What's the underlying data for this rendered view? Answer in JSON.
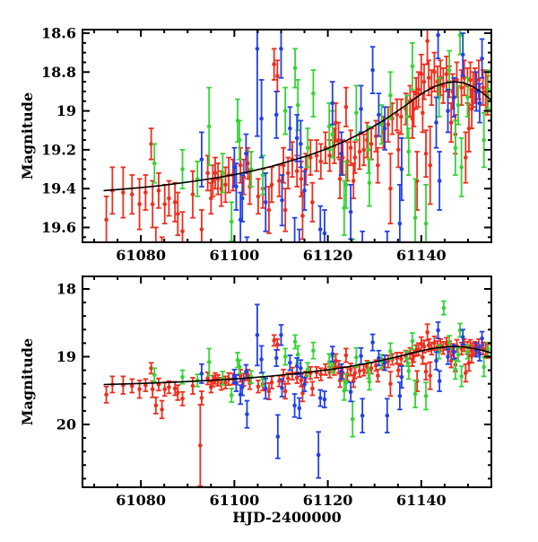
{
  "figure": {
    "background": "#ffffff",
    "frame_color": "#000000"
  },
  "chart_data": {
    "type": "scatter",
    "title": "",
    "xlabel": "HJD-2400000",
    "ylabel": "Magnitude",
    "grid": false,
    "legend": false,
    "xlim": [
      61067.5,
      61155.0
    ],
    "x_major_ticks": [
      61080,
      61100,
      61120,
      61140
    ],
    "x_major_tick_labels": [
      "61080",
      "61100",
      "61120",
      "61140"
    ],
    "x_minor_step": 5,
    "y_axis_direction": "magnitude-inverted",
    "panels": [
      {
        "name": "zoomed-magnitude-panel",
        "ylim_top": 18.5815,
        "ylim_bottom": 19.6763,
        "y_major_ticks": [
          18.6,
          18.8,
          19.0,
          19.2,
          19.4,
          19.6
        ],
        "y_major_tick_labels": [
          "18.6",
          "18.8",
          "19",
          "19.2",
          "19.4",
          "19.6"
        ],
        "y_minor_step": 0.05,
        "show_x_tick_labels": true,
        "show_xlabel": false
      },
      {
        "name": "full-range-magnitude-panel",
        "ylim_top": 17.8146,
        "ylim_bottom": 20.9272,
        "y_major_ticks": [
          18,
          19,
          20
        ],
        "y_major_tick_labels": [
          "18",
          "19",
          "20"
        ],
        "y_minor_step": 0.2,
        "show_x_tick_labels": true,
        "show_xlabel": true
      }
    ],
    "series": [
      {
        "name": "red-photometry",
        "color": "#ee2e1c",
        "points": [
          [
            61072.6,
            19.56,
            0.12
          ],
          [
            61073.9,
            19.41,
            0.12
          ],
          [
            61076.2,
            19.42,
            0.13
          ],
          [
            61078.1,
            19.43,
            0.1
          ],
          [
            61079.7,
            19.48,
            0.13
          ],
          [
            61081.0,
            19.42,
            0.09
          ],
          [
            61082.2,
            19.17,
            0.08
          ],
          [
            61082.5,
            19.48,
            0.12
          ],
          [
            61083.2,
            19.72,
            0.12
          ],
          [
            61083.8,
            19.41,
            0.09
          ],
          [
            61084.5,
            19.78,
            0.13
          ],
          [
            61085.1,
            19.48,
            0.1
          ],
          [
            61086.0,
            19.45,
            0.09
          ],
          [
            61087.3,
            19.47,
            0.1
          ],
          [
            61087.9,
            19.53,
            0.11
          ],
          [
            61088.9,
            19.62,
            0.1
          ],
          [
            61091.1,
            19.43,
            0.12
          ],
          [
            61092.7,
            20.31,
            0.6
          ],
          [
            61093.0,
            19.61,
            0.1
          ],
          [
            61094.3,
            19.32,
            0.09
          ],
          [
            61095.0,
            19.45,
            0.08
          ],
          [
            61095.4,
            19.36,
            0.08
          ],
          [
            61095.9,
            19.32,
            0.08
          ],
          [
            61096.5,
            19.35,
            0.08
          ],
          [
            61097.2,
            19.4,
            0.09
          ],
          [
            61098.1,
            19.38,
            0.09
          ],
          [
            61098.8,
            19.33,
            0.09
          ],
          [
            61099.7,
            19.33,
            0.08
          ],
          [
            61101.3,
            19.28,
            0.09
          ],
          [
            61102.0,
            19.34,
            0.09
          ],
          [
            61102.9,
            19.27,
            0.08
          ],
          [
            61103.3,
            19.39,
            0.09
          ],
          [
            61105.1,
            19.44,
            0.09
          ],
          [
            61106.1,
            19.4,
            0.1
          ],
          [
            61107.4,
            19.51,
            0.12
          ],
          [
            61108.0,
            19.38,
            0.09
          ],
          [
            61108.5,
            18.76,
            0.08
          ],
          [
            61109.2,
            18.82,
            0.08
          ],
          [
            61109.6,
            19.36,
            0.08
          ],
          [
            61110.5,
            19.28,
            0.09
          ],
          [
            61110.9,
            19.51,
            0.11
          ],
          [
            61111.5,
            19.32,
            0.08
          ],
          [
            61112.4,
            19.25,
            0.09
          ],
          [
            61113.4,
            19.31,
            0.08
          ],
          [
            61114.3,
            19.35,
            0.09
          ],
          [
            61114.6,
            19.54,
            0.12
          ],
          [
            61115.3,
            19.3,
            0.08
          ],
          [
            61116.3,
            19.24,
            0.09
          ],
          [
            61116.7,
            19.47,
            0.1
          ],
          [
            61117.6,
            19.23,
            0.08
          ],
          [
            61118.5,
            19.26,
            0.09
          ],
          [
            61119.5,
            19.19,
            0.08
          ],
          [
            61120.4,
            19.23,
            0.08
          ],
          [
            61121.4,
            19.18,
            0.09
          ],
          [
            61121.7,
            19.06,
            0.1
          ],
          [
            61122.3,
            19.15,
            0.09
          ],
          [
            61122.6,
            19.35,
            0.1
          ],
          [
            61123.2,
            19.24,
            0.09
          ],
          [
            61123.9,
            18.98,
            0.1
          ],
          [
            61124.2,
            19.26,
            0.1
          ],
          [
            61124.9,
            19.19,
            0.09
          ],
          [
            61125.5,
            19.36,
            0.09
          ],
          [
            61125.8,
            19.24,
            0.08
          ],
          [
            61126.8,
            19.21,
            0.09
          ],
          [
            61127.7,
            19.2,
            0.08
          ],
          [
            61128.4,
            19.15,
            0.09
          ],
          [
            61129.3,
            19.17,
            0.08
          ],
          [
            61130.3,
            19.13,
            0.08
          ],
          [
            61130.7,
            19.28,
            0.09
          ],
          [
            61131.9,
            19.11,
            0.08
          ],
          [
            61132.9,
            19.07,
            0.09
          ],
          [
            61133.4,
            19.4,
            0.18
          ],
          [
            61133.8,
            19.04,
            0.08
          ],
          [
            61134.8,
            19.02,
            0.08
          ],
          [
            61135.1,
            19.2,
            0.09
          ],
          [
            61135.7,
            19.03,
            0.09
          ],
          [
            61136.7,
            18.99,
            0.08
          ],
          [
            61137.6,
            18.95,
            0.08
          ],
          [
            61138.1,
            19.04,
            0.1
          ],
          [
            61138.4,
            18.99,
            0.09
          ],
          [
            61138.9,
            18.91,
            0.08
          ],
          [
            61139.1,
            19.36,
            0.15
          ],
          [
            61139.4,
            18.89,
            0.09
          ],
          [
            61140.0,
            18.81,
            0.1
          ],
          [
            61140.3,
            19.01,
            0.1
          ],
          [
            61140.6,
            18.85,
            0.09
          ],
          [
            61141.0,
            19.22,
            0.12
          ],
          [
            61141.3,
            18.64,
            0.12
          ],
          [
            61141.6,
            18.83,
            0.09
          ],
          [
            61141.9,
            19.28,
            0.2
          ],
          [
            61142.2,
            18.88,
            0.09
          ],
          [
            61142.8,
            18.8,
            0.1
          ],
          [
            61143.5,
            18.85,
            0.08
          ],
          [
            61144.1,
            18.83,
            0.09
          ],
          [
            61144.7,
            18.87,
            0.09
          ],
          [
            61145.4,
            18.81,
            0.09
          ],
          [
            61146.0,
            18.85,
            0.08
          ],
          [
            61146.4,
            19.06,
            0.1
          ],
          [
            61146.7,
            18.9,
            0.09
          ],
          [
            61147.3,
            19.12,
            0.1
          ],
          [
            61147.6,
            18.84,
            0.09
          ],
          [
            61148.6,
            18.88,
            0.09
          ],
          [
            61149.2,
            18.83,
            0.09
          ],
          [
            61149.5,
            19.24,
            0.13
          ],
          [
            61149.9,
            18.87,
            0.09
          ],
          [
            61150.2,
            19.09,
            0.12
          ],
          [
            61150.5,
            18.84,
            0.09
          ],
          [
            61150.8,
            18.99,
            0.1
          ],
          [
            61151.1,
            18.89,
            0.09
          ],
          [
            61151.5,
            18.87,
            0.09
          ],
          [
            61152.3,
            18.84,
            0.1
          ],
          [
            61153.2,
            18.88,
            0.09
          ],
          [
            61153.8,
            18.9,
            0.1
          ],
          [
            61154.2,
            18.92,
            0.1
          ]
        ]
      },
      {
        "name": "green-photometry",
        "color": "#35d435",
        "points": [
          [
            61082.9,
            19.27,
            0.1
          ],
          [
            61088.9,
            19.3,
            0.1
          ],
          [
            61092.1,
            19.35,
            0.09
          ],
          [
            61094.6,
            19.08,
            0.2
          ],
          [
            61097.5,
            19.32,
            0.1
          ],
          [
            61099.4,
            19.57,
            0.1
          ],
          [
            61100.7,
            19.05,
            0.11
          ],
          [
            61101.1,
            19.15,
            0.1
          ],
          [
            61103.6,
            19.3,
            0.09
          ],
          [
            61106.1,
            19.33,
            0.1
          ],
          [
            61110.9,
            19.0,
            0.12
          ],
          [
            61113.0,
            18.78,
            0.1
          ],
          [
            61113.6,
            18.97,
            0.13
          ],
          [
            61115.7,
            19.19,
            0.1
          ],
          [
            61116.9,
            18.91,
            0.12
          ],
          [
            61120.3,
            19.08,
            0.12
          ],
          [
            61121.0,
            19.12,
            0.12
          ],
          [
            61123.5,
            19.5,
            0.14
          ],
          [
            61123.9,
            19.38,
            0.12
          ],
          [
            61125.3,
            19.92,
            0.26
          ],
          [
            61126.1,
            19.01,
            0.14
          ],
          [
            61128.7,
            19.2,
            0.12
          ],
          [
            61128.9,
            19.37,
            0.12
          ],
          [
            61131.5,
            19.07,
            0.1
          ],
          [
            61133.4,
            18.92,
            0.12
          ],
          [
            61137.0,
            19.03,
            0.11
          ],
          [
            61137.3,
            19.21,
            0.12
          ],
          [
            61138.1,
            18.77,
            0.12
          ],
          [
            61138.7,
            19.55,
            0.2
          ],
          [
            61141.0,
            19.58,
            0.2
          ],
          [
            61143.8,
            18.93,
            0.1
          ],
          [
            61144.8,
            18.28,
            0.1
          ],
          [
            61146.0,
            18.79,
            0.1
          ],
          [
            61147.3,
            19.19,
            0.14
          ],
          [
            61147.9,
            18.97,
            0.1
          ],
          [
            61148.3,
            18.61,
            0.1
          ],
          [
            61148.6,
            19.29,
            0.15
          ],
          [
            61149.9,
            18.93,
            0.1
          ],
          [
            61153.4,
            19.15,
            0.14
          ],
          [
            61154.3,
            18.89,
            0.1
          ]
        ]
      },
      {
        "name": "blue-photometry",
        "color": "#2340e8",
        "points": [
          [
            61093.0,
            19.25,
            0.14
          ],
          [
            61100.0,
            19.29,
            0.1
          ],
          [
            61100.4,
            19.39,
            0.12
          ],
          [
            61101.3,
            19.56,
            0.14
          ],
          [
            61101.7,
            19.45,
            0.12
          ],
          [
            61102.5,
            19.22,
            0.1
          ],
          [
            61102.7,
            19.85,
            0.2
          ],
          [
            61104.9,
            18.68,
            0.45
          ],
          [
            61105.8,
            19.04,
            0.2
          ],
          [
            61106.7,
            19.47,
            0.15
          ],
          [
            61109.0,
            19.02,
            0.12
          ],
          [
            61109.3,
            20.18,
            0.32
          ],
          [
            61110.0,
            18.68,
            0.15
          ],
          [
            61110.2,
            19.46,
            0.13
          ],
          [
            61111.9,
            19.09,
            0.11
          ],
          [
            61112.9,
            19.72,
            0.17
          ],
          [
            61113.4,
            19.14,
            0.12
          ],
          [
            61113.9,
            19.76,
            0.15
          ],
          [
            61114.2,
            19.17,
            0.12
          ],
          [
            61115.0,
            19.41,
            0.1
          ],
          [
            61118.0,
            20.45,
            0.34
          ],
          [
            61118.4,
            19.61,
            0.12
          ],
          [
            61119.3,
            19.63,
            0.12
          ],
          [
            61121.0,
            18.96,
            0.11
          ],
          [
            61122.9,
            19.22,
            0.11
          ],
          [
            61124.9,
            19.52,
            0.14
          ],
          [
            61127.1,
            18.99,
            0.12
          ],
          [
            61127.4,
            19.87,
            0.25
          ],
          [
            61129.6,
            18.79,
            0.12
          ],
          [
            61130.9,
            19.02,
            0.11
          ],
          [
            61132.2,
            19.09,
            0.11
          ],
          [
            61132.7,
            19.87,
            0.25
          ],
          [
            61135.4,
            19.58,
            0.2
          ],
          [
            61135.8,
            19.3,
            0.16
          ],
          [
            61143.2,
            19.06,
            0.13
          ],
          [
            61143.6,
            18.61,
            0.12
          ],
          [
            61143.9,
            19.36,
            0.15
          ],
          [
            61145.7,
            19.0,
            0.11
          ],
          [
            61147.0,
            18.93,
            0.1
          ],
          [
            61148.9,
            18.71,
            0.11
          ],
          [
            61151.8,
            18.9,
            0.1
          ],
          [
            61152.5,
            18.96,
            0.1
          ],
          [
            61153.0,
            18.73,
            0.1
          ]
        ]
      }
    ],
    "model_curve": {
      "name": "model-fit-curve",
      "color": "#000000",
      "points": [
        [
          61072,
          19.41
        ],
        [
          61076,
          19.403
        ],
        [
          61080,
          19.395
        ],
        [
          61084,
          19.385
        ],
        [
          61088,
          19.373
        ],
        [
          61092,
          19.36
        ],
        [
          61096,
          19.345
        ],
        [
          61100,
          19.328
        ],
        [
          61104,
          19.308
        ],
        [
          61108,
          19.285
        ],
        [
          61112,
          19.258
        ],
        [
          61116,
          19.228
        ],
        [
          61120,
          19.193
        ],
        [
          61124,
          19.152
        ],
        [
          61128,
          19.105
        ],
        [
          61132,
          19.048
        ],
        [
          61136,
          18.983
        ],
        [
          61139,
          18.93
        ],
        [
          61141,
          18.898
        ],
        [
          61143,
          18.873
        ],
        [
          61145,
          18.857
        ],
        [
          61147,
          18.85
        ],
        [
          61149,
          18.855
        ],
        [
          61151,
          18.875
        ],
        [
          61153,
          18.905
        ],
        [
          61155,
          18.945
        ]
      ]
    }
  }
}
